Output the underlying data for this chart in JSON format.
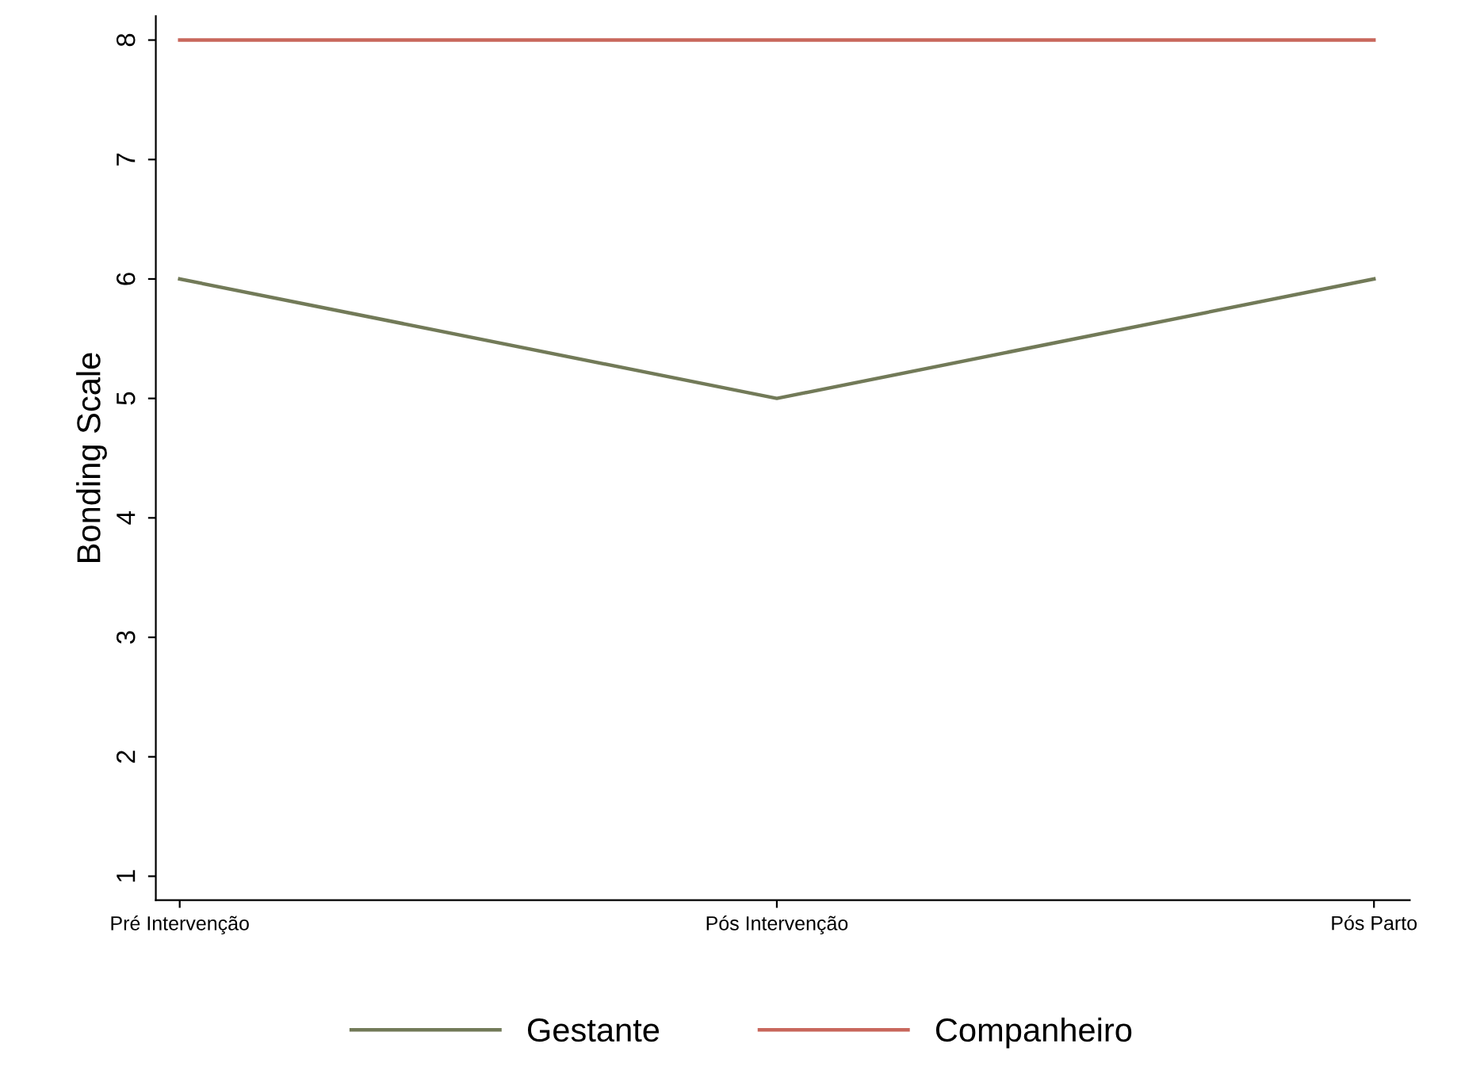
{
  "chart_data": {
    "type": "line",
    "ylabel": "Bonding Scale",
    "categories": [
      "Pré Intervenção",
      "Pós Intervenção",
      "Pós Parto"
    ],
    "series": [
      {
        "name": "Gestante",
        "color": "#727a58",
        "values": [
          6,
          5,
          6
        ]
      },
      {
        "name": "Companheiro",
        "color": "#c8675c",
        "values": [
          8,
          8,
          8
        ]
      }
    ],
    "ylim": [
      0.8,
      8.2
    ],
    "yticks": [
      1,
      2,
      3,
      4,
      5,
      6,
      7,
      8
    ],
    "grid": false,
    "legend": "bottom",
    "marker": "none",
    "line_style": "solid"
  }
}
